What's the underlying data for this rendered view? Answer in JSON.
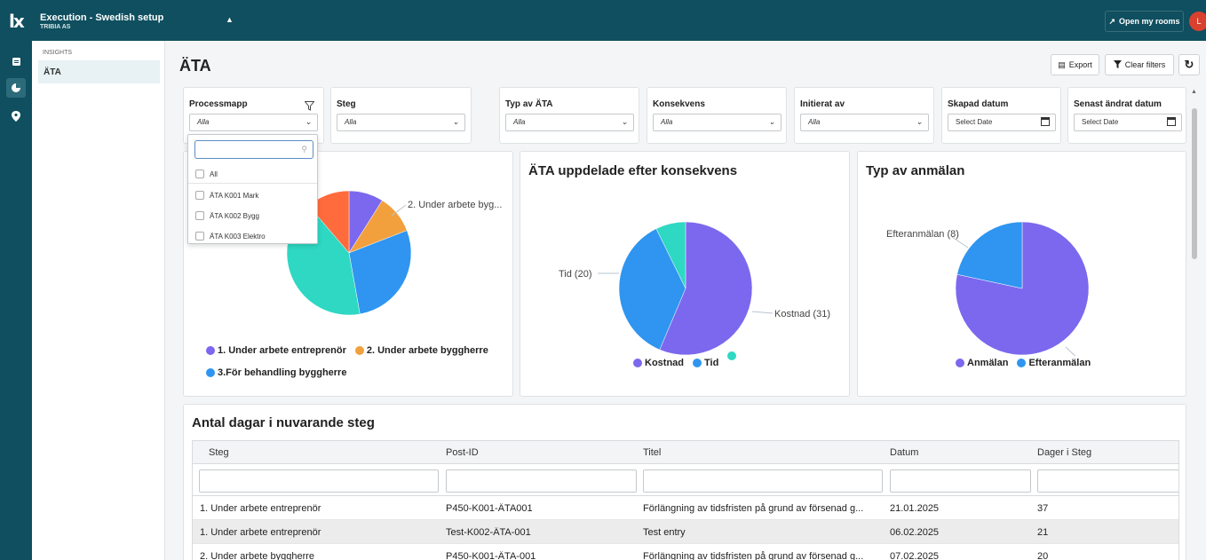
{
  "header": {
    "app_title": "Execution - Swedish setup",
    "app_subtitle": "TRIBIA AS",
    "open_rooms": "Open my rooms",
    "avatar_initial": "L",
    "colors": {
      "brand": "#0f4f5f",
      "avatar": "#d9412e"
    }
  },
  "sidebar": {
    "section": "INSIGHTS",
    "item": "ÄTA"
  },
  "page": {
    "title": "ÄTA",
    "export": "Export",
    "clear_filters": "Clear filters"
  },
  "filters": [
    {
      "label": "Processmapp",
      "value": "Alla"
    },
    {
      "label": "Steg",
      "value": "Alla"
    },
    {
      "label": "Typ av ÄTA",
      "value": "Alla"
    },
    {
      "label": "Konsekvens",
      "value": "Alla"
    },
    {
      "label": "Initierat av",
      "value": "Alla"
    },
    {
      "label": "Skapad datum",
      "value": "Select Date"
    },
    {
      "label": "Senast ändrat datum",
      "value": "Select Date"
    }
  ],
  "dropdown": {
    "options": [
      "All",
      "ÄTA K001 Mark",
      "ÄTA K002 Bygg",
      "ÄTA K003 Elektro"
    ]
  },
  "charts": {
    "chart1": {
      "slice_label": "2. Under arbete byg...",
      "legend": [
        "1. Under arbete entreprenör",
        "2. Under arbete byggherre",
        "3.För behandling byggherre"
      ]
    },
    "chart2": {
      "title": "ÄTA uppdelade efter konsekvens",
      "labels": [
        "Tid (20)",
        "Kostnad (31)"
      ],
      "legend": [
        "Kostnad",
        "Tid"
      ]
    },
    "chart3": {
      "title": "Typ av anmälan",
      "labels": [
        "Efteranmälan (8)",
        "Anmälan (29)"
      ],
      "legend": [
        "Anmälan",
        "Efteranmälan"
      ]
    }
  },
  "chart_data": [
    {
      "type": "pie",
      "title": "",
      "categories": [
        "1. Under arbete entreprenör",
        "2. Under arbete byggherre",
        "3.För behandling byggherre",
        "",
        ""
      ],
      "values": [
        8,
        9,
        25,
        37,
        10
      ],
      "colors": [
        "#7b68ee",
        "#f2a03d",
        "#2f95f0",
        "#2ed8c3",
        "#ff6b3d"
      ]
    },
    {
      "type": "pie",
      "title": "ÄTA uppdelade efter konsekvens",
      "categories": [
        "Kostnad",
        "Tid",
        ""
      ],
      "values": [
        31,
        20,
        4
      ],
      "colors": [
        "#7b68ee",
        "#2f95f0",
        "#2ed8c3"
      ]
    },
    {
      "type": "pie",
      "title": "Typ av anmälan",
      "categories": [
        "Anmälan",
        "Efteranmälan"
      ],
      "values": [
        29,
        8
      ],
      "colors": [
        "#7b68ee",
        "#2f95f0"
      ]
    }
  ],
  "table": {
    "title": "Antal dagar i nuvarande steg",
    "columns": [
      "Steg",
      "Post-ID",
      "Titel",
      "Datum",
      "Dager i Steg"
    ],
    "rows": [
      [
        "1. Under arbete entreprenör",
        "P450-K001-ÄTA001",
        "Förlängning av tidsfristen på grund av försenad g...",
        "21.01.2025",
        "37"
      ],
      [
        "1. Under arbete entreprenör",
        "Test-K002-ÄTA-001",
        "Test entry",
        "06.02.2025",
        "21"
      ],
      [
        "2. Under arbete byggherre",
        "P450-K001-ÄTA-001",
        "Förlängning av tidsfristen på grund av försenad g...",
        "07.02.2025",
        "20"
      ]
    ]
  }
}
